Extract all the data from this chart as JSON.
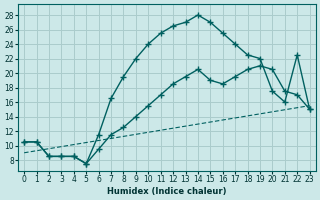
{
  "xlabel": "Humidex (Indice chaleur)",
  "bg_color": "#cce8e8",
  "grid_color": "#aacccc",
  "line_color": "#006060",
  "xlim": [
    -0.5,
    23.5
  ],
  "ylim": [
    6.5,
    29.5
  ],
  "xticks": [
    0,
    1,
    2,
    3,
    4,
    5,
    6,
    7,
    8,
    9,
    10,
    11,
    12,
    13,
    14,
    15,
    16,
    17,
    18,
    19,
    20,
    21,
    22,
    23
  ],
  "yticks": [
    8,
    10,
    12,
    14,
    16,
    18,
    20,
    22,
    24,
    26,
    28
  ],
  "line_peak": {
    "x": [
      0,
      1,
      2,
      3,
      4,
      5,
      6,
      7,
      8,
      9,
      10,
      11,
      12,
      13,
      14,
      15,
      16,
      17,
      18,
      19,
      20,
      21,
      22,
      23
    ],
    "y": [
      10.5,
      10.5,
      8.5,
      8.5,
      8.5,
      7.5,
      11.5,
      16.5,
      19.5,
      22.0,
      24.0,
      25.5,
      26.5,
      27.0,
      28.0,
      27.0,
      25.5,
      24.0,
      22.5,
      22.0,
      17.5,
      16.0,
      22.5,
      15.0
    ]
  },
  "line_mid": {
    "x": [
      0,
      1,
      2,
      3,
      4,
      5,
      6,
      7,
      8,
      9,
      10,
      11,
      12,
      13,
      14,
      15,
      16,
      17,
      18,
      19,
      20,
      21,
      22,
      23
    ],
    "y": [
      10.5,
      10.5,
      8.5,
      8.5,
      8.5,
      7.5,
      9.5,
      11.5,
      12.5,
      14.0,
      15.5,
      17.0,
      18.5,
      19.5,
      20.5,
      19.0,
      18.5,
      19.5,
      20.5,
      21.0,
      20.5,
      17.5,
      17.0,
      15.0
    ]
  },
  "line_low": {
    "x": [
      0,
      23
    ],
    "y": [
      9.0,
      15.5
    ]
  }
}
